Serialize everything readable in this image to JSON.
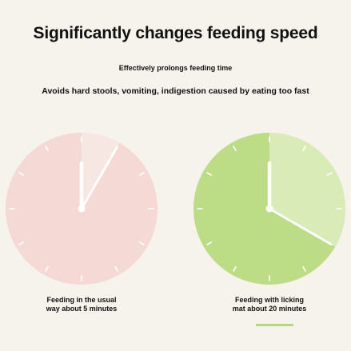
{
  "header": {
    "title": "Significantly changes feeding speed",
    "subtitle": "Effectively prolongs feeding time",
    "benefit": "Avoids hard stools, vomiting, indigestion caused by eating too fast"
  },
  "clocks": [
    {
      "caption": "Feeding in the usual way about 5 minutes",
      "minutes": 5,
      "face_color": "#f4d9d4",
      "sector_color": "#f7e7e3",
      "sector_outline_color": "#ffffff"
    },
    {
      "caption": "Feeding with licking mat about 20 minutes",
      "minutes": 20,
      "face_color": "#bcdd85",
      "sector_color": "#d9ecb7",
      "sector_outline_color": "#ffffff"
    }
  ],
  "colors": {
    "background": "#f6f3ec",
    "highlight_underline": "#b5d97e"
  }
}
